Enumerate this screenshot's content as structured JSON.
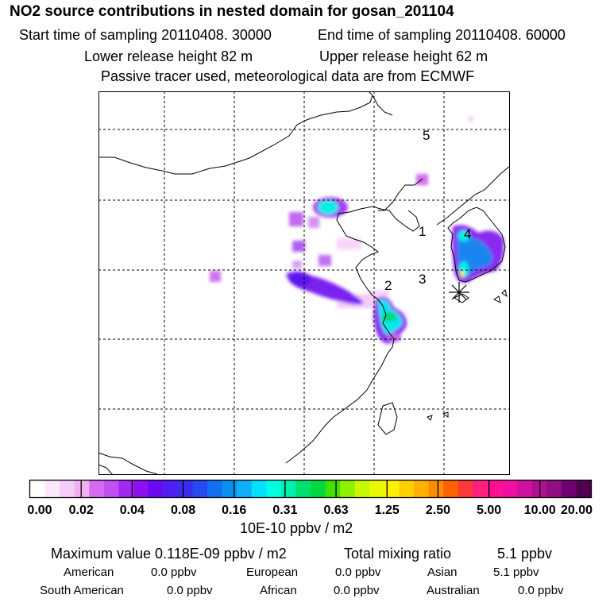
{
  "header": {
    "title": "NO2 source contributions in nested domain for gosan_201104",
    "start_time": "Start time of sampling 20110408. 30000",
    "end_time": "End time of sampling 20110408. 60000",
    "lower_height": "Lower release height   82 m",
    "upper_height": "Upper release height   62 m",
    "tracer_note": "Passive tracer used, meteorological data are from ECMWF"
  },
  "map": {
    "markers": [
      "1",
      "2",
      "3",
      "4",
      "5"
    ],
    "receptor_symbol": "asterisk",
    "plume_colors": [
      "#f0c8f5",
      "#d070f0",
      "#a020f0",
      "#5010f0",
      "#1080f0",
      "#00ffe8",
      "#00e878",
      "#b8ff00",
      "#fff000"
    ]
  },
  "legend": {
    "ticks": [
      "0.00",
      "0.02",
      "0.04",
      "0.08",
      "0.16",
      "0.31",
      "0.63",
      "1.25",
      "2.50",
      "5.00",
      "10.00",
      "20.00"
    ],
    "colors": [
      "#ffffff",
      "#fbe8fb",
      "#f4cdf6",
      "#eeb2f3",
      "#d46af0",
      "#c050f0",
      "#a028f0",
      "#8c10f0",
      "#6a0af0",
      "#5020f0",
      "#3b2cf0",
      "#2848f0",
      "#1070f0",
      "#0890f0",
      "#10b0f8",
      "#00e0ff",
      "#00ffe0",
      "#00f0b0",
      "#00e070",
      "#00d840",
      "#40e000",
      "#90f000",
      "#c8f800",
      "#e8f800",
      "#fff000",
      "#ffd000",
      "#ffb000",
      "#ff8c00",
      "#ff6000",
      "#ff3838",
      "#ff2080",
      "#ff1090",
      "#f010a0",
      "#d010a0",
      "#b01090",
      "#901080",
      "#700070",
      "#500050"
    ],
    "unit": "10E-10 ppbv / m2"
  },
  "stats": {
    "max_value": "Maximum value  0.118E-09 ppbv / m2",
    "total_label": "Total mixing ratio",
    "total_value": "5.1 ppbv",
    "regions": [
      {
        "name": "American",
        "value": "0.0 ppbv"
      },
      {
        "name": "European",
        "value": "0.0 ppbv"
      },
      {
        "name": "Asian",
        "value": "5.1 ppbv"
      },
      {
        "name": "South American",
        "value": "0.0 ppbv"
      },
      {
        "name": "African",
        "value": "0.0 ppbv"
      },
      {
        "name": "Australian",
        "value": "0.0 ppbv"
      }
    ]
  }
}
